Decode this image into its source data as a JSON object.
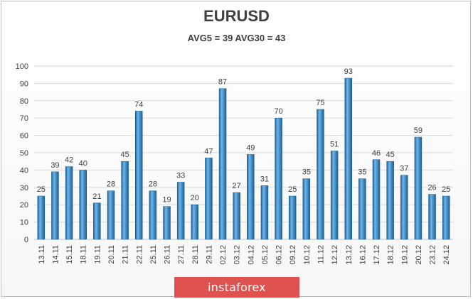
{
  "chart_data": {
    "type": "bar",
    "title": "EURUSD",
    "subtitle": "AVG5 = 39 AVG30 = 43",
    "categories": [
      "13.11",
      "14.11",
      "15.11",
      "18.11",
      "19.11",
      "20.11",
      "21.11",
      "22.11",
      "25.11",
      "26.11",
      "27.11",
      "28.11",
      "29.11",
      "02.12",
      "03.12",
      "04.12",
      "05.12",
      "06.12",
      "09.12",
      "10.12",
      "11.12",
      "12.12",
      "13.12",
      "16.12",
      "17.12",
      "18.12",
      "19.12",
      "20.12",
      "23.12",
      "24.12"
    ],
    "values": [
      25,
      39,
      42,
      40,
      21,
      28,
      45,
      74,
      28,
      19,
      33,
      20,
      47,
      87,
      27,
      49,
      31,
      70,
      25,
      35,
      75,
      51,
      93,
      35,
      46,
      45,
      37,
      59,
      26,
      25
    ],
    "ylim": [
      0,
      100
    ],
    "yticks": [
      0,
      10,
      20,
      30,
      40,
      50,
      60,
      70,
      80,
      90,
      100
    ],
    "grid": true,
    "legend": "none",
    "bar_color": "#2e86c9",
    "bar_color_light": "#6fb6ea",
    "bar_color_dark": "#1a5e94"
  },
  "watermark": {
    "text": "instaforex",
    "color": "#e0524f"
  }
}
